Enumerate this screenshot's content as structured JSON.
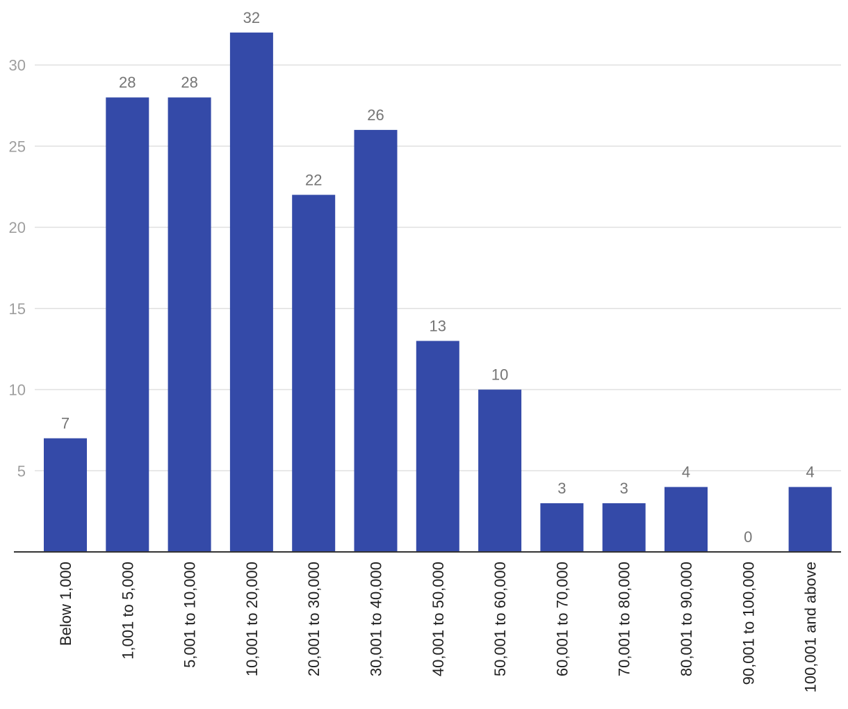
{
  "chart_data": {
    "type": "bar",
    "categories": [
      "Below 1,000",
      "1,001 to 5,000",
      "5,001 to 10,000",
      "10,001 to 20,000",
      "20,001 to 30,000",
      "30,001 to 40,000",
      "40,001 to 50,000",
      "50,001 to 60,000",
      "60,001 to 70,000",
      "70,001 to 80,000",
      "80,001 to 90,000",
      "90,001 to 100,000",
      "100,001 and above"
    ],
    "values": [
      7,
      28,
      28,
      32,
      22,
      26,
      13,
      10,
      3,
      3,
      4,
      0,
      4
    ],
    "data_labels": [
      "7",
      "28",
      "28",
      "32",
      "22",
      "26",
      "13",
      "10",
      "3",
      "3",
      "4",
      "0",
      "4"
    ],
    "yticks": [
      5,
      10,
      15,
      20,
      25,
      30
    ],
    "ytick_labels": [
      "5",
      "10",
      "15",
      "20",
      "25",
      "30"
    ],
    "ylim": [
      0,
      32
    ],
    "title": "",
    "xlabel": "",
    "ylabel": "",
    "grid": true,
    "bar_color": "#344aa8"
  }
}
